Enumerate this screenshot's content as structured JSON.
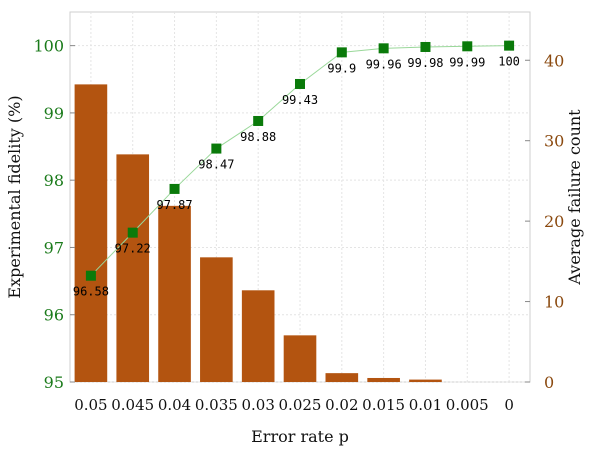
{
  "chart_data": {
    "type": "bar+line",
    "categories": [
      "0.05",
      "0.045",
      "0.04",
      "0.035",
      "0.03",
      "0.025",
      "0.02",
      "0.015",
      "0.01",
      "0.005",
      "0"
    ],
    "series": [
      {
        "axis": "right",
        "kind": "bar",
        "values": [
          37,
          28.3,
          21.9,
          15.5,
          11.4,
          5.8,
          1.1,
          0.5,
          0.3,
          0,
          0
        ],
        "color": "#b35410"
      },
      {
        "axis": "left",
        "kind": "line",
        "values": [
          96.58,
          97.22,
          97.87,
          98.47,
          98.88,
          99.43,
          99.9,
          99.96,
          99.98,
          99.99,
          100
        ],
        "data_labels": [
          "96.58",
          "97.22",
          "97.87",
          "98.47",
          "98.88",
          "99.43",
          "99.9",
          "99.96",
          "99.98",
          "99.99",
          "100"
        ],
        "color": "#0a7a0a",
        "line_color": "#9ad89a"
      }
    ],
    "xlabel": "Error rate p",
    "ylabel_left": "Experimental fidelity (%)",
    "ylabel_right": "Average failure count",
    "ylim_left": [
      95,
      100.5
    ],
    "ylim_right": [
      0,
      46
    ],
    "yticks_left": [
      "95",
      "96",
      "97",
      "98",
      "99",
      "100"
    ],
    "yticks_right": [
      "0",
      "10",
      "20",
      "30",
      "40"
    ],
    "grid": true,
    "legend": "none",
    "colors": {
      "left_axis": "#1a7a1a",
      "right_axis": "#8b4a10",
      "grid": "#e4e4e4"
    }
  }
}
